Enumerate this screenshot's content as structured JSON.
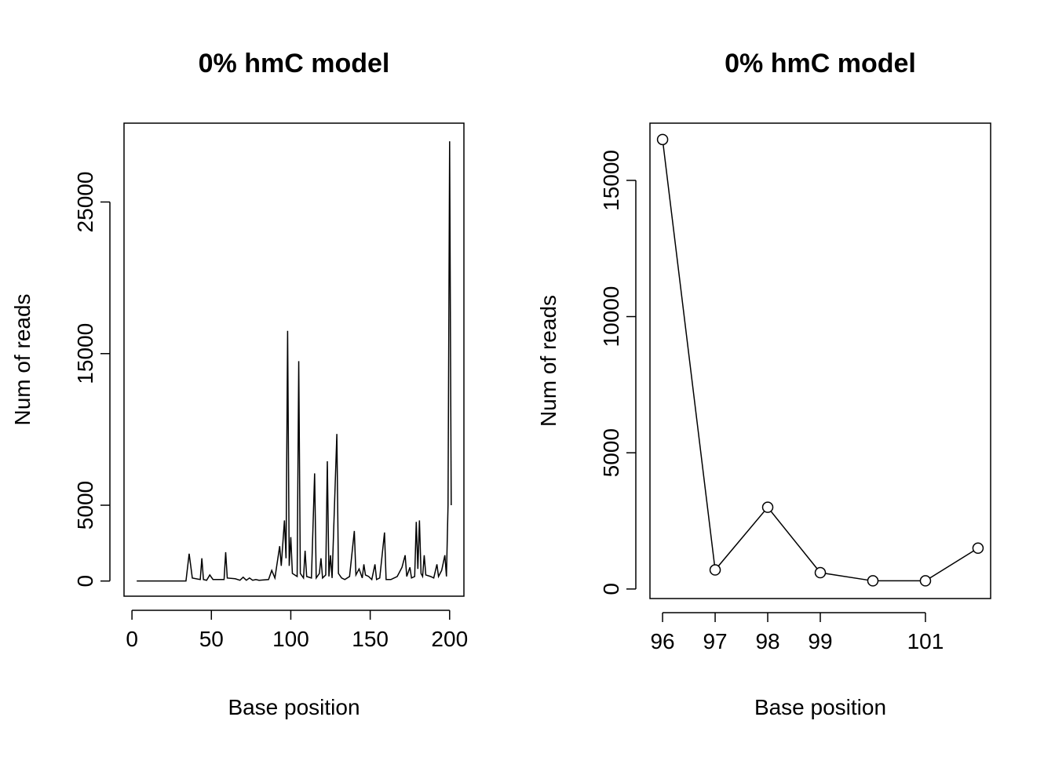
{
  "chart_data": [
    {
      "type": "line",
      "title": "0% hmC model",
      "xlabel": "Base position",
      "ylabel": "Num of reads",
      "color": "#000000",
      "marker": "none",
      "x": [
        3,
        34,
        36,
        38,
        43,
        44,
        45,
        47,
        49,
        51,
        58,
        59,
        60,
        65,
        68,
        70,
        72,
        74,
        76,
        78,
        80,
        86,
        88,
        90,
        93,
        94,
        96,
        97,
        98,
        99,
        100,
        101,
        104,
        105,
        106,
        108,
        109,
        110,
        113,
        115,
        116,
        118,
        119,
        120,
        122,
        123,
        124,
        125,
        126,
        129,
        130,
        132,
        134,
        137,
        140,
        141,
        143,
        145,
        146,
        147,
        149,
        151,
        153,
        154,
        156,
        159,
        160,
        163,
        167,
        170,
        172,
        173,
        175,
        176,
        178,
        179,
        180,
        181,
        182,
        183,
        184,
        185,
        188,
        190,
        192,
        193,
        195,
        197,
        198,
        199,
        200,
        201
      ],
      "values": [
        0,
        0,
        1800,
        200,
        100,
        1500,
        100,
        50,
        400,
        100,
        100,
        1900,
        200,
        150,
        50,
        250,
        50,
        200,
        50,
        100,
        50,
        100,
        700,
        200,
        2300,
        1000,
        4000,
        1500,
        16500,
        1000,
        2900,
        500,
        300,
        14500,
        500,
        200,
        2000,
        300,
        200,
        7100,
        200,
        500,
        1500,
        200,
        400,
        7900,
        300,
        1700,
        200,
        9700,
        500,
        200,
        100,
        300,
        3300,
        400,
        800,
        200,
        1100,
        400,
        300,
        100,
        1100,
        100,
        200,
        3200,
        100,
        100,
        300,
        900,
        1700,
        300,
        900,
        200,
        300,
        3900,
        800,
        4000,
        500,
        300,
        1700,
        400,
        300,
        200,
        1100,
        300,
        700,
        1700,
        300,
        5000,
        29000,
        5000
      ],
      "xlim": [
        -5,
        209
      ],
      "ylim": [
        -1000,
        30200
      ],
      "xticks": [
        0,
        50,
        100,
        150,
        200
      ],
      "yticks": [
        0,
        5000,
        15000,
        25000
      ]
    },
    {
      "type": "line",
      "title": "0% hmC model",
      "xlabel": "Base position",
      "ylabel": "Num of reads",
      "color": "#000000",
      "marker": "circle",
      "x": [
        96,
        97,
        98,
        99,
        100,
        101,
        102
      ],
      "values": [
        16500,
        700,
        3000,
        600,
        300,
        300,
        1500
      ],
      "xlim": [
        95.76,
        102.24
      ],
      "ylim": [
        -350,
        17100
      ],
      "xticks": [
        96,
        97,
        98,
        99,
        101
      ],
      "yticks": [
        0,
        5000,
        10000,
        15000
      ]
    }
  ]
}
